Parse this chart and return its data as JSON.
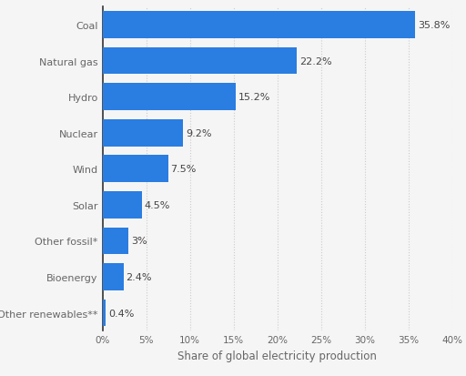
{
  "categories": [
    "Other renewables**",
    "Bioenergy",
    "Other fossil*",
    "Solar",
    "Wind",
    "Nuclear",
    "Hydro",
    "Natural gas",
    "Coal"
  ],
  "values": [
    0.4,
    2.4,
    3.0,
    4.5,
    7.5,
    9.2,
    15.2,
    22.2,
    35.8
  ],
  "labels": [
    "0.4%",
    "2.4%",
    "3%",
    "4.5%",
    "7.5%",
    "9.2%",
    "15.2%",
    "22.2%",
    "35.8%"
  ],
  "bar_color": "#2a7de1",
  "background_color": "#f5f5f5",
  "plot_bg_color": "#f5f5f5",
  "xlabel": "Share of global electricity production",
  "xlim": [
    0,
    40
  ],
  "xticks": [
    0,
    5,
    10,
    15,
    20,
    25,
    30,
    35,
    40
  ],
  "xtick_labels": [
    "0%",
    "5%",
    "10%",
    "15%",
    "20%",
    "25%",
    "30%",
    "35%",
    "40%"
  ],
  "label_fontsize": 8.0,
  "tick_label_fontsize": 7.5,
  "xlabel_fontsize": 8.5,
  "bar_label_fontsize": 8.0,
  "bar_label_color": "#444444",
  "axis_label_color": "#666666",
  "grid_color": "#cccccc",
  "grid_linestyle": ":"
}
